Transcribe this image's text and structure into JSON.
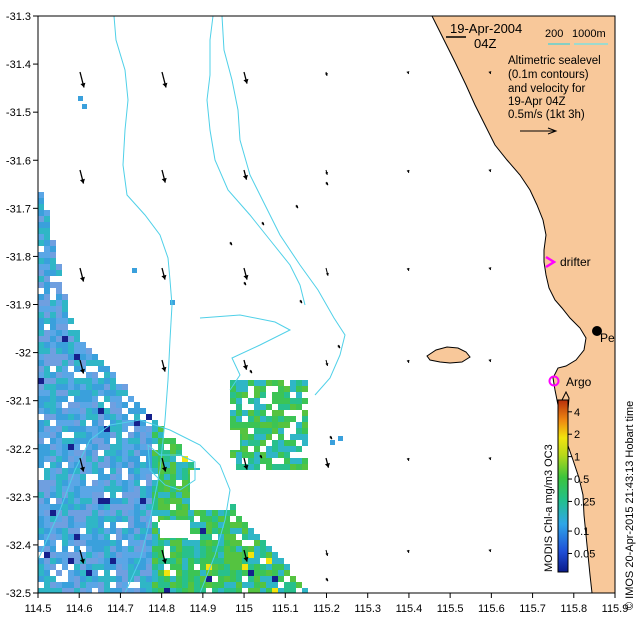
{
  "map": {
    "date_label": "19-Apr-2004",
    "time_label": "04Z",
    "isobath_labels": [
      "200",
      "1000m"
    ],
    "isobath_colors": [
      "#5fd1d1",
      "#7fe0e0"
    ],
    "legend_lines": [
      "Altimetric sealevel",
      "(0.1m contours)",
      "and velocity for",
      "19-Apr 04Z",
      "0.5m/s (1kt 3h)"
    ],
    "x_ticks": [
      "114.5",
      "114.6",
      "114.7",
      "114.8",
      "114.9",
      "115",
      "115.1",
      "115.2",
      "115.3",
      "115.4",
      "115.5",
      "115.6",
      "115.7",
      "115.8",
      "115.9"
    ],
    "y_ticks": [
      "-31.3",
      "-31.4",
      "-31.5",
      "-31.6",
      "-31.7",
      "-31.8",
      "-31.9",
      "-32",
      "-32.1",
      "-32.2",
      "-32.3",
      "-32.4",
      "-32.5"
    ],
    "labels": {
      "drifter": "drifter",
      "perth": "Perth",
      "argo": "Argo"
    },
    "colorbar_ticks": [
      "4",
      "2",
      "1",
      "0.5",
      "0.25",
      "0.1",
      "0.05"
    ],
    "colorbar_title": "MODIS Chl-a mg/m3 OC3",
    "credit": "© IMOS 20-Apr-2015 21:43:13 Hobart time",
    "colors": {
      "land": "#f8c89a",
      "coast": "#000000",
      "drifter": "#ff00ff",
      "argo": "#ff00ff",
      "contour": "#4fd0e8"
    }
  }
}
